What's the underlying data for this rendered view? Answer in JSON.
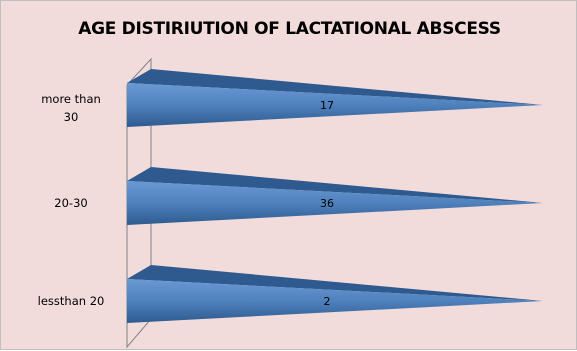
{
  "chart_data": {
    "type": "bar",
    "orientation": "horizontal",
    "style": "3d-cone",
    "title": "AGE DISTIRIUTION OF LACTATIONAL ABSCESS",
    "categories": [
      "more than 30",
      "20-30",
      "lessthan 20"
    ],
    "category_lines": [
      [
        "more than",
        "30"
      ],
      [
        "20-30"
      ],
      [
        "lessthan 20"
      ]
    ],
    "values": [
      17,
      36,
      2
    ],
    "data_labels": [
      "17",
      "36",
      "2"
    ],
    "grid": false,
    "legend": "none"
  },
  "colors": {
    "background": "#f2dcdb",
    "bar_front": "#4f81bd",
    "bar_front_edge": "#6a9ad4",
    "bar_top": "#2e5a8f",
    "wall_line": "#7f7f7f"
  }
}
